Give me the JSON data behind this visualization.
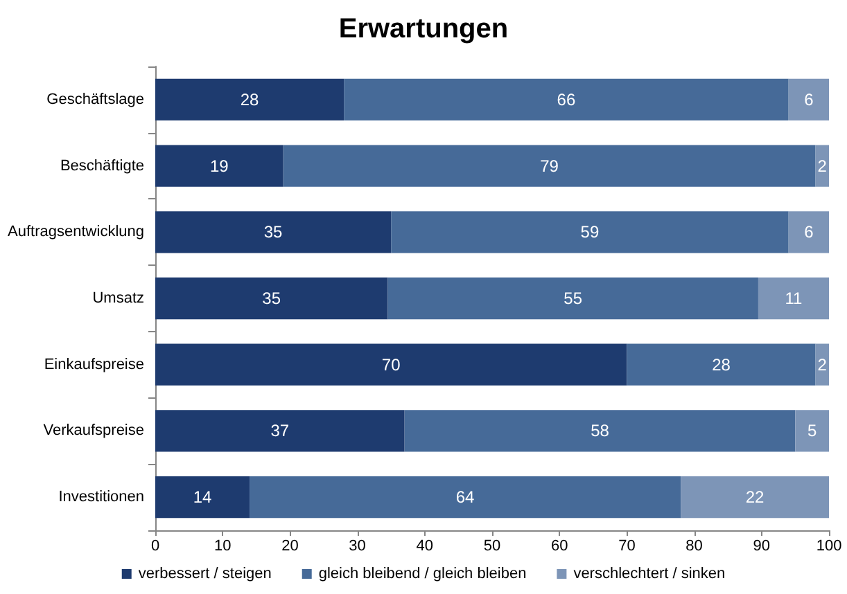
{
  "chart_data": {
    "type": "bar",
    "orientation": "horizontal",
    "stacked": true,
    "title": "Erwartungen",
    "categories": [
      "Geschäftslage",
      "Beschäftigte",
      "Auftragsentwicklung",
      "Umsatz",
      "Einkaufspreise",
      "Verkaufspreise",
      "Investitionen"
    ],
    "series": [
      {
        "name": "verbessert / steigen",
        "color": "#1e3b6f",
        "values": [
          28,
          19,
          35,
          34.5,
          70,
          37,
          14
        ],
        "value_labels": [
          "28",
          "19",
          "35",
          "35",
          "70",
          "37",
          "14"
        ]
      },
      {
        "name": "gleich bleibend / gleich bleiben",
        "color": "#466a98",
        "values": [
          66,
          79,
          59,
          55,
          28,
          58,
          64
        ],
        "value_labels": [
          "66",
          "79",
          "59",
          "55",
          "28",
          "58",
          "64"
        ]
      },
      {
        "name": "verschlechtert / sinken",
        "color": "#7d95b7",
        "values": [
          6,
          2,
          6,
          10.5,
          2,
          5,
          22
        ],
        "value_labels": [
          "6",
          "2",
          "6",
          "11",
          "2",
          "5",
          "22"
        ]
      }
    ],
    "xlim": [
      0,
      100
    ],
    "xticks": [
      0,
      10,
      20,
      30,
      40,
      50,
      60,
      70,
      80,
      90,
      100
    ],
    "legend": "bottom"
  }
}
